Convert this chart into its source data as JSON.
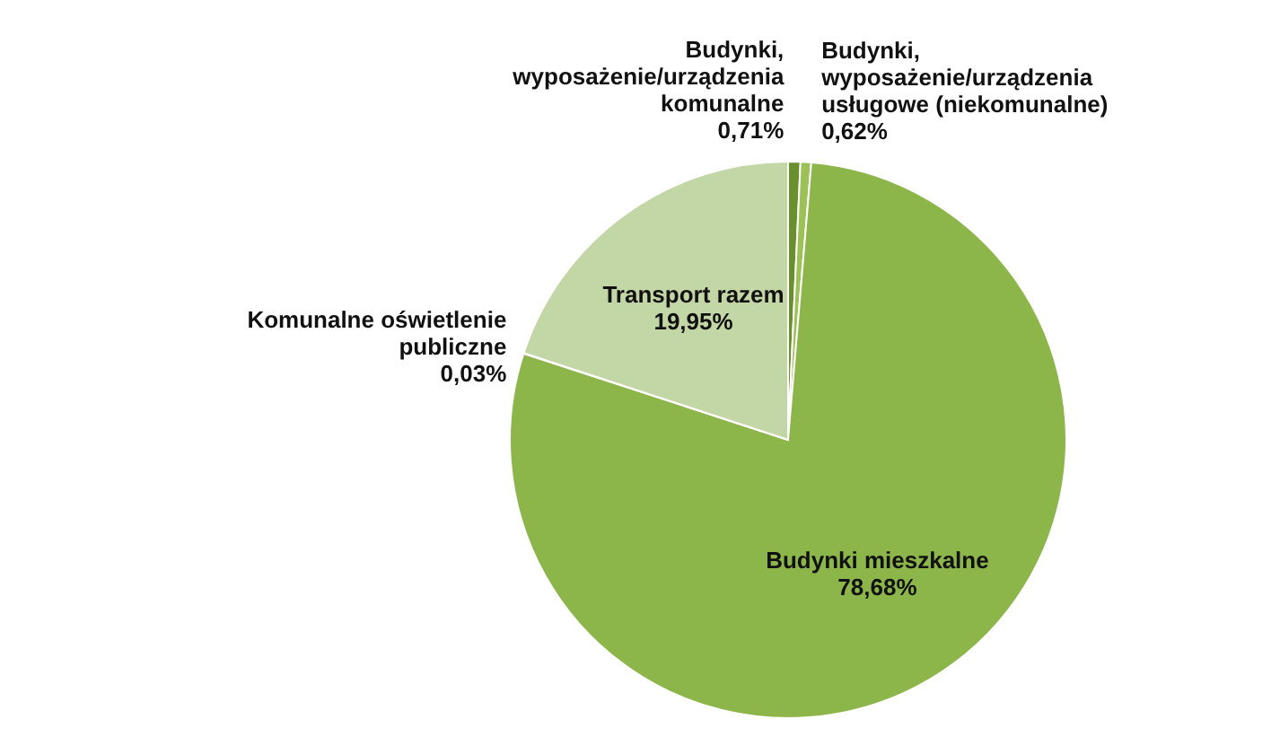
{
  "chart_data": {
    "type": "pie",
    "categories": [
      "Budynki, wyposażenie/urządzenia komunalne",
      "Budynki, wyposażenie/urządzenia usługowe (niekomunalne)",
      "Budynki mieszkalne",
      "Komunalne oświetlenie publiczne",
      "Transport razem"
    ],
    "values": [
      0.71,
      0.62,
      78.68,
      0.03,
      19.95
    ],
    "value_labels": [
      "0,71%",
      "0,62%",
      "78,68%",
      "0,03%",
      "19,95%"
    ],
    "colors": [
      "#6a8f2d",
      "#9cc257",
      "#8db64a",
      "#4f6228",
      "#c3d6a5"
    ]
  }
}
